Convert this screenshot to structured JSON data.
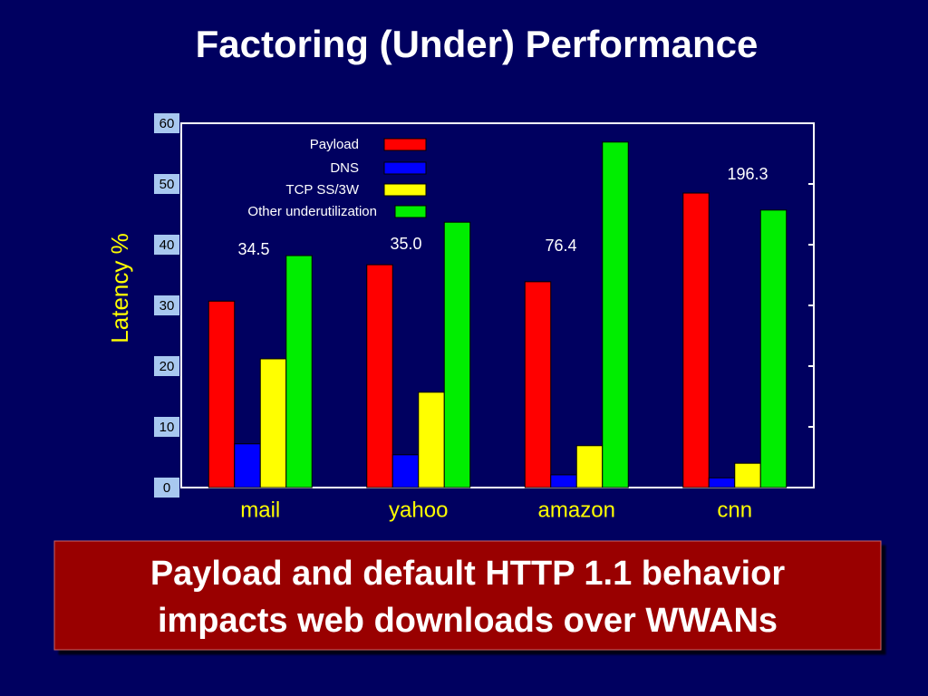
{
  "chart_data": {
    "type": "bar",
    "title": "Factoring (Under) Performance",
    "y_label": "Latency %",
    "categories": [
      "mail",
      "yahoo",
      "amazon",
      "cnn"
    ],
    "series": [
      {
        "name": "Payload",
        "color": "#ff0000",
        "values": [
          30.7,
          36.7,
          33.9,
          48.5
        ]
      },
      {
        "name": "DNS",
        "color": "#0000ff",
        "values": [
          7.2,
          5.4,
          2.1,
          1.6
        ]
      },
      {
        "name": "TCP SS/3W",
        "color": "#ffff00",
        "values": [
          21.2,
          15.7,
          6.9,
          4.0
        ]
      },
      {
        "name": "Other underutilization",
        "color": "#00ee00",
        "values": [
          38.2,
          43.7,
          56.9,
          45.7
        ]
      }
    ],
    "annotations": [
      "34.5",
      "35.0",
      "76.4",
      "196.3"
    ],
    "ylim": [
      0,
      60
    ],
    "yticks": [
      0,
      10,
      20,
      30,
      40,
      50,
      60
    ],
    "grid": false
  },
  "callout": [
    "Payload and default HTTP 1.1 behavior",
    "impacts web downloads over WWANs"
  ]
}
